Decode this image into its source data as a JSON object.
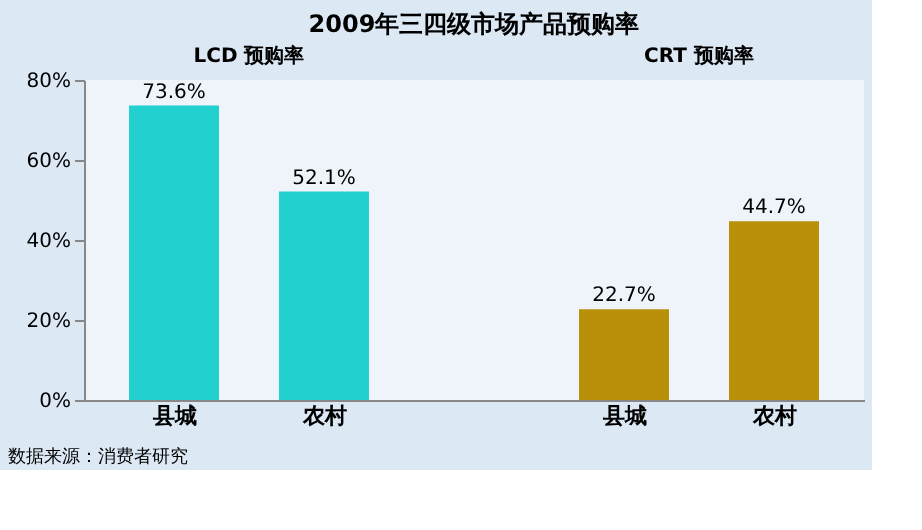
{
  "chart_data": {
    "type": "bar",
    "title": "2009年三四级市场产品预购率",
    "categories": [
      "县城",
      "农村",
      null,
      "县城",
      "农村"
    ],
    "values": [
      73.6,
      52.1,
      null,
      22.7,
      44.7
    ],
    "colors": [
      "#22d0d0",
      "#22d0d0",
      null,
      "#b8900a",
      "#b8900a"
    ],
    "value_labels": [
      "73.6%",
      "52.1%",
      null,
      "22.7%",
      "44.7%"
    ],
    "ylim": [
      0,
      80
    ],
    "yticks": [
      {
        "value": 0,
        "label": "0%"
      },
      {
        "value": 20,
        "label": "20%"
      },
      {
        "value": 40,
        "label": "40%"
      },
      {
        "value": 60,
        "label": "60%"
      },
      {
        "value": 80,
        "label": "80%"
      }
    ],
    "grid": false,
    "annotations": [
      "LCD 预购率",
      "CRT 预购率",
      "数据来源：消费者研究"
    ]
  }
}
